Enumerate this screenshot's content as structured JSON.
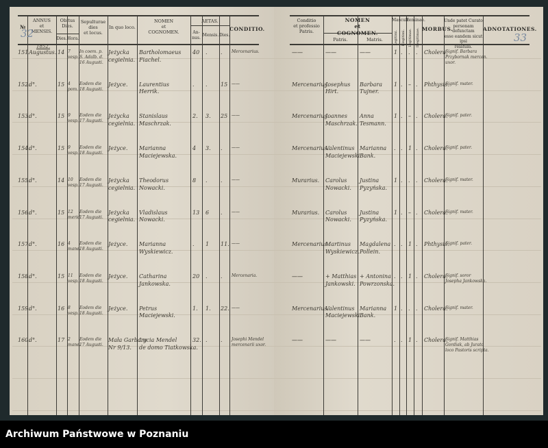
{
  "left_page": {
    "page_number": "32",
    "year": "1852.",
    "headers": {
      "number": "№",
      "annus": "ANNUS\net\nMENSIS.",
      "obitus": "Obitus\nDies.",
      "obitus_dies": "Dies.",
      "obitus_hora": "Hora.",
      "sepulturae": "Sepulturae\ndies\net locus.",
      "in_quo_loco": "In quo loco.",
      "nomen": "NOMEN\net\nCOGNOMEN.",
      "aetas": "AETAS.",
      "anni": "An-\nnus.",
      "menses": "Mensis.",
      "dies": "Dies.",
      "conditio": "CONDITIO."
    }
  },
  "right_page": {
    "page_number": "33",
    "headers": {
      "conditio_patris": "Conditio\net professio\nPatris.",
      "nomen": "NOMEN\net\nCOGNOMEN.",
      "patris": "Patris.",
      "matris": "Matris.",
      "masculi": "Masculi.",
      "feminae": "Feminae.",
      "legitimi": "Legitimi.",
      "illegitimi": "Illegitimi.",
      "legitimae": "Legitimae.",
      "illegitimae": "Illegitimae.",
      "morbus": "MORBUS.",
      "unde": "Unde patet Curato\npersonam defunctam\nesse eandem sicut ipsi\nrelatum.",
      "adnotationes": "ADNOTATIONES."
    }
  },
  "rows": [
    {
      "num": "151.",
      "month": "Augustus.",
      "day": "14",
      "hour": "7\nvesp.",
      "burial": "In coem. p.\nS. Adalb. d.\n16 Augusti.",
      "place": "Jeżycka\ncegielnia.",
      "name": "Bartholomaeus\nFiachel.",
      "anni": "40",
      "menses": ".",
      "dies": ".",
      "conditio": "Mercenarius.",
      "father_cond": "——",
      "pater": "——",
      "mater": "——",
      "lm": "1",
      "im": ".",
      "lf": ".",
      "if": ".",
      "morbus": "Cholera.",
      "informant": "Signif. Barbara\nPrzybornak mercen.\nuxor."
    },
    {
      "num": "152.",
      "month": "d°.",
      "day": "15",
      "hour": "4\npom.",
      "burial": "Eodem die\n18 Augusti.",
      "place": "Jeżyce.",
      "name": "Laurentius\nHerrik.",
      "anni": ".",
      "menses": ".",
      "dies": "15",
      "conditio": "——",
      "father_cond": "Mercenarius.",
      "pater": "Josephus\nHirt.",
      "mater": "Barbara\nTujner.",
      "lm": "1",
      "im": ".",
      "lf": "–",
      "if": ".",
      "morbus": "Phthysis.",
      "informant": "Signif. mater."
    },
    {
      "num": "153.",
      "month": "d°.",
      "day": "15",
      "hour": "9\nvesp.",
      "burial": "Eodem die\n17 Augusti.",
      "place": "Jeżycka\ncegielnia.",
      "name": "Stanislaus\nMaschrzak.",
      "anni": "2.",
      "menses": "3.",
      "dies": "25",
      "conditio": "——",
      "father_cond": "Mercenarius.",
      "pater": "Joannes\nMaschrzak.",
      "mater": "Anna\nTesmann.",
      "lm": "1",
      "im": ".",
      "lf": "–",
      "if": ".",
      "morbus": "Cholera.",
      "informant": "Signif. pater."
    },
    {
      "num": "154.",
      "month": "d°.",
      "day": "15",
      "hour": "9\nvesp.",
      "burial": "Eodem die\n18 Augusti.",
      "place": "Jeżyce.",
      "name": "Marianna\nMaciejewska.",
      "anni": "4",
      "menses": "3.",
      "dies": ".",
      "conditio": "——",
      "father_cond": "Mercenarius.",
      "pater": "Valentinus\nMaciejewski.",
      "mater": "Marianna\nBank.",
      "lm": ".",
      "im": ".",
      "lf": "1",
      "if": ".",
      "morbus": "Cholera.",
      "informant": "Signif. pater."
    },
    {
      "num": "155.",
      "month": "d°.",
      "day": "14",
      "hour": "10\nvesp.",
      "burial": "Eodem die\n17 Augusti.",
      "place": "Jeżycka\ncegielnia.",
      "name": "Theodorus\nNowacki.",
      "anni": "8",
      "menses": ".",
      "dies": ".",
      "conditio": "——",
      "father_cond": "Murarius.",
      "pater": "Carolus\nNowacki.",
      "mater": "Justina\nPyzyńska.",
      "lm": "1",
      "im": ".",
      "lf": ".",
      "if": ".",
      "morbus": "Cholera.",
      "informant": "Signif. mater."
    },
    {
      "num": "156.",
      "month": "d°.",
      "day": "15",
      "hour": "12\nmerid.",
      "burial": "Eodem die\n17 Augusti.",
      "place": "Jeżycka\ncegielnia.",
      "name": "Vladislaus\nNowacki.",
      "anni": "13",
      "menses": "6",
      "dies": ".",
      "conditio": "——",
      "father_cond": "Murarius.",
      "pater": "Carolus\nNowacki.",
      "mater": "Justina\nPyzyńska.",
      "lm": "1",
      "im": ".",
      "lf": "–",
      "if": ".",
      "morbus": "Cholera.",
      "informant": "Signif. mater."
    },
    {
      "num": "157.",
      "month": "d°.",
      "day": "16",
      "hour": "4\nmane.",
      "burial": "Eodem die\n18 Augusti.",
      "place": "Jeżyce.",
      "name": "Marianna\nWyskiewicz.",
      "anni": ".",
      "menses": "1",
      "dies": "11.",
      "conditio": "——",
      "father_cond": "Mercenarius.",
      "pater": "Martinus\nWyskiewicz.",
      "mater": "Magdalena\nPollein.",
      "lm": ".",
      "im": ".",
      "lf": "1",
      "if": ".",
      "morbus": "Phthysis.",
      "informant": "Signif. pater."
    },
    {
      "num": "158.",
      "month": "d°.",
      "day": "15",
      "hour": "11\nvesp.",
      "burial": "Eodem die\n18 Augusti.",
      "place": "Jeżyce.",
      "name": "Catharina\nJankowska.",
      "anni": "20",
      "menses": ".",
      "dies": ".",
      "conditio": "Mercenaria.",
      "father_cond": "——",
      "pater": "+ Matthias\nJankowski.",
      "mater": "+ Antonina\nPowrzonska.",
      "lm": ".",
      "im": ".",
      "lf": "1",
      "if": ".",
      "morbus": "Cholera.",
      "informant": "Signif. soror\nJosepha Jankowska."
    },
    {
      "num": "159.",
      "month": "d°.",
      "day": "16",
      "hour": "8\nvesp.",
      "burial": "Eodem die\n18 Augusti.",
      "place": "Jeżyce.",
      "name": "Petrus\nMaciejewski.",
      "anni": "1.",
      "menses": "1.",
      "dies": "22.",
      "conditio": "——",
      "father_cond": "Mercenarius.",
      "pater": "Valentinus\nMaciejewski.",
      "mater": "Marianna\nBank.",
      "lm": "1",
      "im": ".",
      "lf": ".",
      "if": ".",
      "morbus": "Cholera.",
      "informant": "Signif. mater."
    },
    {
      "num": "160.",
      "month": "d°.",
      "day": "17",
      "hour": "2\nmane.",
      "burial": "Eodem die\n17 Augusti.",
      "place": "Mała Garbary\nNr 9/13.",
      "name": "Lucia Mendel\nde domo Tiatkowska.",
      "anni": "32.",
      "menses": ".",
      "dies": ".",
      "conditio": "Josephi Mendel\nmercenarii uxor.",
      "father_cond": "——",
      "pater": "——",
      "mater": "——",
      "lm": ".",
      "im": ".",
      "lf": "1",
      "if": ".",
      "morbus": "Cholera.",
      "informant": "Signif. Matthias\nGordiak, ab Jurato\nloco Pastoris scripta."
    }
  ],
  "footer": {
    "archive_name": "Archiwum Państwowe w Poznaniu"
  }
}
